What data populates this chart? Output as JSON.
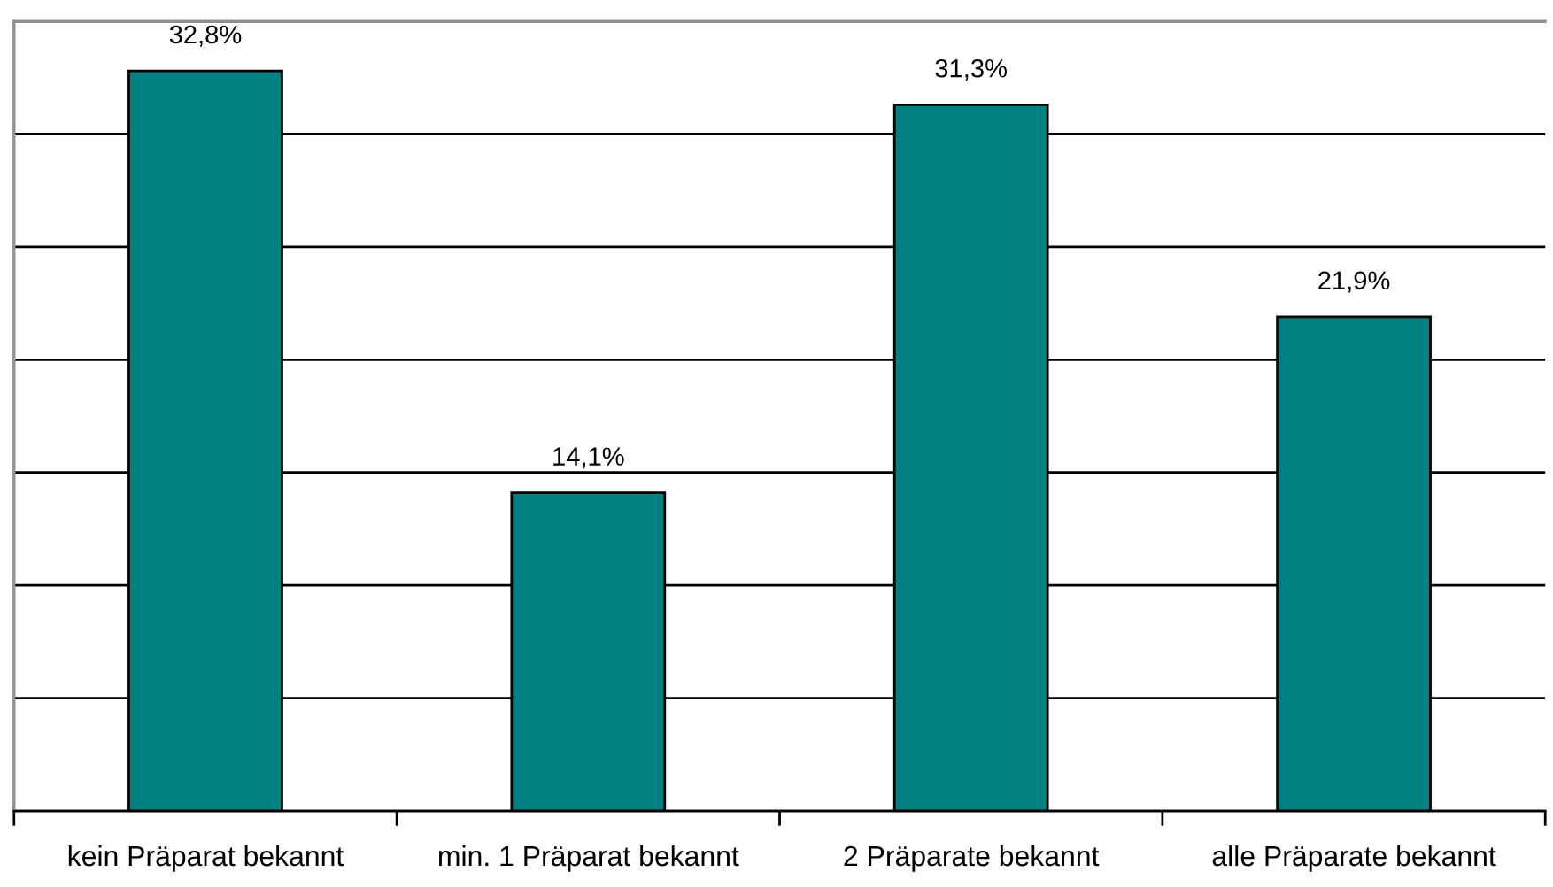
{
  "chart_data": {
    "type": "bar",
    "categories": [
      "kein Präparat bekannt",
      "min. 1 Präparat bekannt",
      "2 Präparate bekannt",
      "alle Präparate bekannt"
    ],
    "values": [
      32.8,
      14.1,
      31.3,
      21.9
    ],
    "value_labels": [
      "32,8%",
      "14,1%",
      "31,3%",
      "21,9%"
    ],
    "color": "#008080",
    "ylim": [
      0,
      35
    ],
    "yticks": [
      {
        "value": 0,
        "label": null
      },
      {
        "value": 5,
        "label": null
      },
      {
        "value": 10,
        "label": null
      },
      {
        "value": 15,
        "label": null
      },
      {
        "value": 20,
        "label": null
      },
      {
        "value": 25,
        "label": null
      },
      {
        "value": 30,
        "label": null
      },
      {
        "value": 35,
        "label": null
      }
    ],
    "grid": "y",
    "tick_labels": "x"
  }
}
